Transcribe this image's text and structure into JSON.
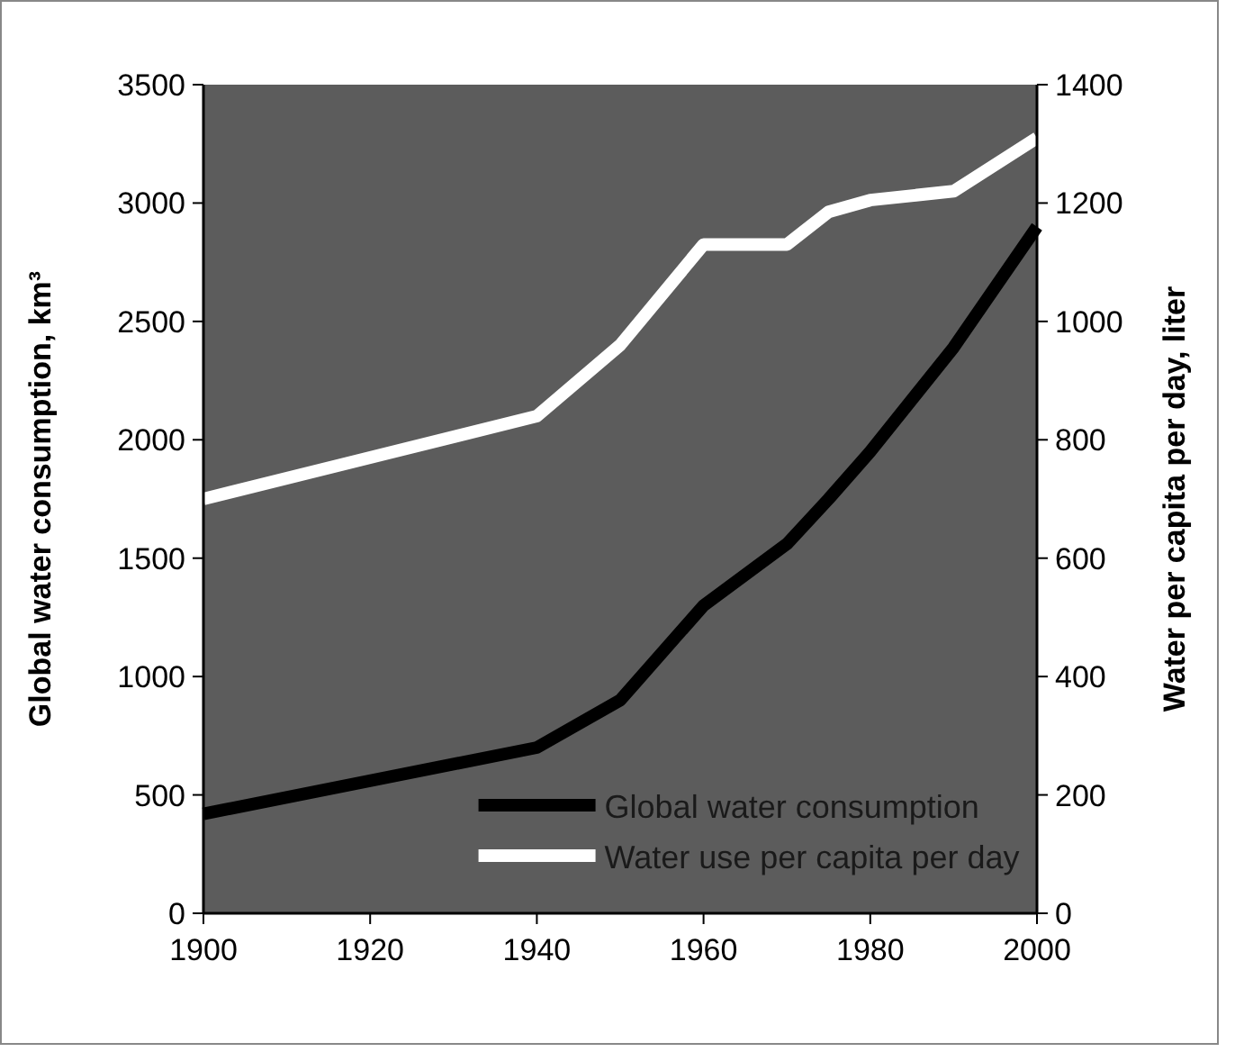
{
  "chart_data": {
    "type": "line",
    "xlabel": null,
    "ylabel": "Global water consumption, km³",
    "y2label": "Water per capita per day, liter",
    "x": [
      1900,
      1940,
      1950,
      1960,
      1970,
      1975,
      1980,
      1990,
      2000
    ],
    "series": [
      {
        "name": "Global water consumption",
        "color": "#000000",
        "values": [
          420,
          700,
          900,
          1300,
          1560,
          1750,
          1950,
          2390,
          2900
        ]
      },
      {
        "name": "Water use per capita per day",
        "color": "#ffffff",
        "axis": "y2",
        "values": [
          700,
          840,
          960,
          1130,
          1130,
          1185,
          1205,
          1220,
          1310
        ]
      }
    ],
    "xlim": [
      1900,
      2000
    ],
    "xticks": [
      1900,
      1920,
      1940,
      1960,
      1980,
      2000
    ],
    "ylim": [
      0,
      3500
    ],
    "yticks": [
      0,
      500,
      1000,
      1500,
      2000,
      2500,
      3000,
      3500
    ],
    "y2lim": [
      0,
      1400
    ],
    "y2ticks": [
      0,
      200,
      400,
      600,
      800,
      1000,
      1200,
      1400
    ],
    "legend": "bottom",
    "grid": false,
    "line_style": "solid"
  }
}
